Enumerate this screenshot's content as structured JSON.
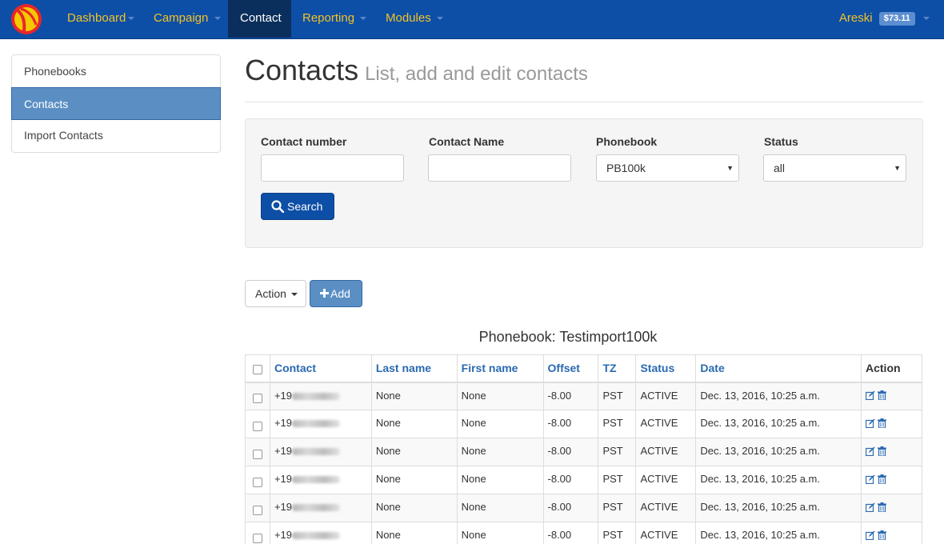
{
  "nav": {
    "items": [
      {
        "label": "Dashboard",
        "active": false
      },
      {
        "label": "Campaign",
        "active": false
      },
      {
        "label": "Contact",
        "active": true
      },
      {
        "label": "Reporting",
        "active": false
      },
      {
        "label": "Modules",
        "active": false
      }
    ],
    "user_name": "Areski",
    "balance": "$73.11"
  },
  "sidebar": {
    "items": [
      {
        "label": "Phonebooks",
        "active": false
      },
      {
        "label": "Contacts",
        "active": true
      },
      {
        "label": "Import Contacts",
        "active": false
      }
    ]
  },
  "header": {
    "title": "Contacts",
    "subtitle": "List, add and edit contacts"
  },
  "search": {
    "contact_number_label": "Contact number",
    "contact_number_value": "",
    "contact_name_label": "Contact Name",
    "contact_name_value": "",
    "phonebook_label": "Phonebook",
    "phonebook_value": "PB100k",
    "status_label": "Status",
    "status_value": "all",
    "search_button": "Search"
  },
  "toolbar": {
    "action_label": "Action",
    "add_label": "Add"
  },
  "table": {
    "title": "Phonebook: Testimport100k",
    "columns": [
      "Contact",
      "Last name",
      "First name",
      "Offset",
      "TZ",
      "Status",
      "Date",
      "Action"
    ],
    "rows": [
      {
        "contact": "+19",
        "last_name": "None",
        "first_name": "None",
        "offset": "-8.00",
        "tz": "PST",
        "status": "ACTIVE",
        "date": "Dec. 13, 2016, 10:25 a.m."
      },
      {
        "contact": "+19",
        "last_name": "None",
        "first_name": "None",
        "offset": "-8.00",
        "tz": "PST",
        "status": "ACTIVE",
        "date": "Dec. 13, 2016, 10:25 a.m."
      },
      {
        "contact": "+19",
        "last_name": "None",
        "first_name": "None",
        "offset": "-8.00",
        "tz": "PST",
        "status": "ACTIVE",
        "date": "Dec. 13, 2016, 10:25 a.m."
      },
      {
        "contact": "+19",
        "last_name": "None",
        "first_name": "None",
        "offset": "-8.00",
        "tz": "PST",
        "status": "ACTIVE",
        "date": "Dec. 13, 2016, 10:25 a.m."
      },
      {
        "contact": "+19",
        "last_name": "None",
        "first_name": "None",
        "offset": "-8.00",
        "tz": "PST",
        "status": "ACTIVE",
        "date": "Dec. 13, 2016, 10:25 a.m."
      },
      {
        "contact": "+19",
        "last_name": "None",
        "first_name": "None",
        "offset": "-8.00",
        "tz": "PST",
        "status": "ACTIVE",
        "date": "Dec. 13, 2016, 10:25 a.m."
      }
    ]
  },
  "colors": {
    "navbar": "#0d4fa6",
    "nav_text": "#f3c227",
    "nav_active": "#0b2f5c",
    "accent": "#5b8fc4",
    "link": "#2a6ab1"
  },
  "icons": [
    "logo-icon",
    "search-icon",
    "plus-icon",
    "edit-icon",
    "trash-icon"
  ]
}
